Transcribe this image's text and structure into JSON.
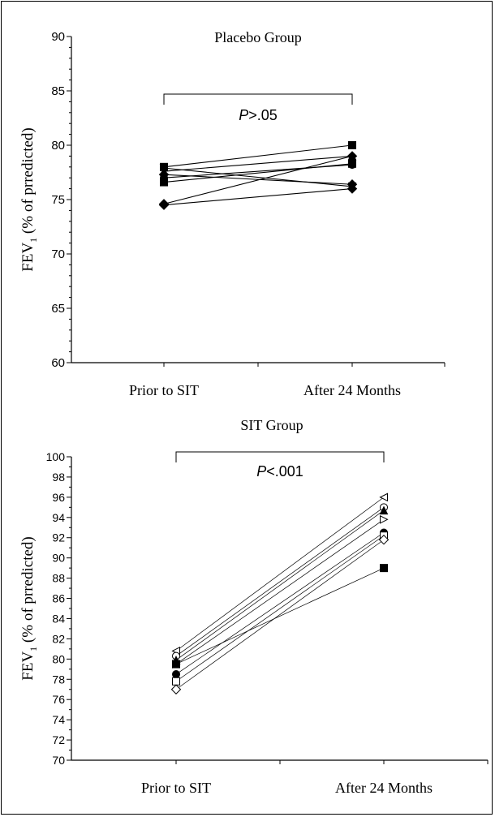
{
  "chart_data": [
    {
      "type": "line",
      "title": "Placebo Group",
      "ylabel_main": "FEV",
      "ylabel_sub": "1",
      "ylabel_rest": " (% of prredicted)",
      "categories": [
        "Prior to SIT",
        "After 24 Months"
      ],
      "ylim": [
        60,
        90
      ],
      "yticks": [
        60,
        65,
        70,
        75,
        80,
        85,
        90
      ],
      "minor_step": 1,
      "annotation": {
        "p_italic": "P",
        "p_rest": ">.05"
      },
      "series": [
        {
          "marker": "square-filled",
          "values": [
            78.0,
            80.0
          ]
        },
        {
          "marker": "triangle-filled",
          "values": [
            77.6,
            79.0
          ]
        },
        {
          "marker": "circle-filled",
          "values": [
            77.0,
            78.2
          ]
        },
        {
          "marker": "square-filled",
          "values": [
            76.6,
            78.3
          ]
        },
        {
          "marker": "triangle-down-filled",
          "values": [
            77.9,
            76.2
          ]
        },
        {
          "marker": "diamond-filled",
          "values": [
            74.5,
            76.0
          ]
        },
        {
          "marker": "diamond-filled",
          "values": [
            74.6,
            79.0
          ]
        },
        {
          "marker": "diamond-filled",
          "values": [
            77.3,
            76.4
          ]
        }
      ]
    },
    {
      "type": "line",
      "title": "SIT Group",
      "ylabel_main": "FEV",
      "ylabel_sub": "1",
      "ylabel_rest": " (% of prredicted)",
      "categories": [
        "Prior to SIT",
        "After 24 Months"
      ],
      "ylim": [
        70,
        100
      ],
      "yticks": [
        70,
        72,
        74,
        76,
        78,
        80,
        82,
        84,
        86,
        88,
        90,
        92,
        94,
        96,
        98,
        100
      ],
      "minor_step": 1,
      "annotation": {
        "p_italic": "P",
        "p_rest": "<.001"
      },
      "series": [
        {
          "marker": "triangle-open-left",
          "values": [
            80.8,
            96.0
          ]
        },
        {
          "marker": "circle-open",
          "values": [
            80.3,
            95.0
          ]
        },
        {
          "marker": "triangle-filled",
          "values": [
            79.9,
            94.7
          ]
        },
        {
          "marker": "triangle-open-right",
          "values": [
            79.5,
            93.8
          ]
        },
        {
          "marker": "circle-filled",
          "values": [
            78.5,
            92.5
          ]
        },
        {
          "marker": "square-filled",
          "values": [
            79.5,
            89.0
          ]
        },
        {
          "marker": "square-open",
          "values": [
            77.8,
            92.2
          ]
        },
        {
          "marker": "diamond-open",
          "values": [
            77.0,
            91.8
          ]
        }
      ]
    }
  ]
}
